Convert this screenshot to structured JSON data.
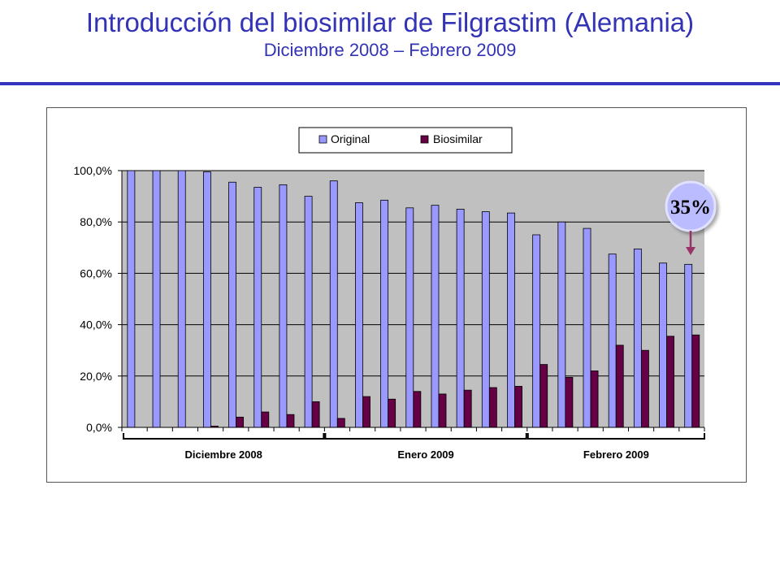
{
  "header": {
    "title": "Introducción del biosimilar de Filgrastim (Alemania)",
    "subtitle": "Diciembre 2008 – Febrero 2009"
  },
  "colors": {
    "title": "#3333b5",
    "rule": "#3333c0",
    "original": "#9999ff",
    "biosimilar": "#660044",
    "plot_bg": "#c0c0c0",
    "callout": "#993366"
  },
  "chart_data": {
    "type": "bar",
    "title": "",
    "xlabel": "",
    "ylabel": "",
    "ylim": [
      0,
      100
    ],
    "y_ticks": [
      "0,0%",
      "20,0%",
      "40,0%",
      "60,0%",
      "80,0%",
      "100,0%"
    ],
    "grid": true,
    "legend_position": "top-center",
    "periods": [
      "Diciembre 2008",
      "Enero 2009",
      "Febrero 2009"
    ],
    "series": [
      {
        "name": "Original",
        "values": [
          100,
          100,
          100,
          99.5,
          95.5,
          93.5,
          94.5,
          90,
          96,
          87.5,
          88.5,
          85.5,
          86.5,
          85,
          84,
          83.5,
          75,
          80,
          77.5,
          67.5,
          69.5,
          64,
          63.5
        ]
      },
      {
        "name": "Biosimilar",
        "values": [
          0,
          0,
          0,
          0.5,
          4,
          6,
          5,
          10,
          3.5,
          12,
          11,
          14,
          13,
          14.5,
          15.5,
          16,
          24.5,
          19.5,
          22,
          32,
          30,
          35.5,
          36
        ]
      }
    ],
    "annotation": "35%"
  }
}
